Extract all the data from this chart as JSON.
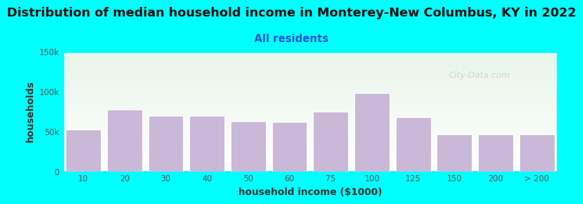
{
  "title": "Distribution of median household income in Monterey-New Columbus, KY in 2022",
  "subtitle": "All residents",
  "xlabel": "household income ($1000)",
  "ylabel": "households",
  "background_color": "#00FFFF",
  "plot_bg_top": "#e8f5e9",
  "plot_bg_bottom": "#ffffff",
  "bar_color": "#C9B8D8",
  "bar_edge_color": "#ffffff",
  "categories": [
    "10",
    "20",
    "30",
    "40",
    "50",
    "60",
    "75",
    "100",
    "125",
    "150",
    "200",
    "> 200"
  ],
  "values": [
    52000,
    77000,
    70000,
    70000,
    63000,
    62000,
    75000,
    98000,
    68000,
    46000,
    46000,
    46000
  ],
  "ylim": [
    0,
    150000
  ],
  "ytick_labels": [
    "0",
    "50k",
    "100k",
    "150k"
  ],
  "ytick_values": [
    0,
    50000,
    100000,
    150000
  ],
  "title_fontsize": 13,
  "subtitle_fontsize": 11,
  "axis_label_fontsize": 10,
  "watermark_text": "City-Data.com",
  "watermark_color": "#cccccc"
}
